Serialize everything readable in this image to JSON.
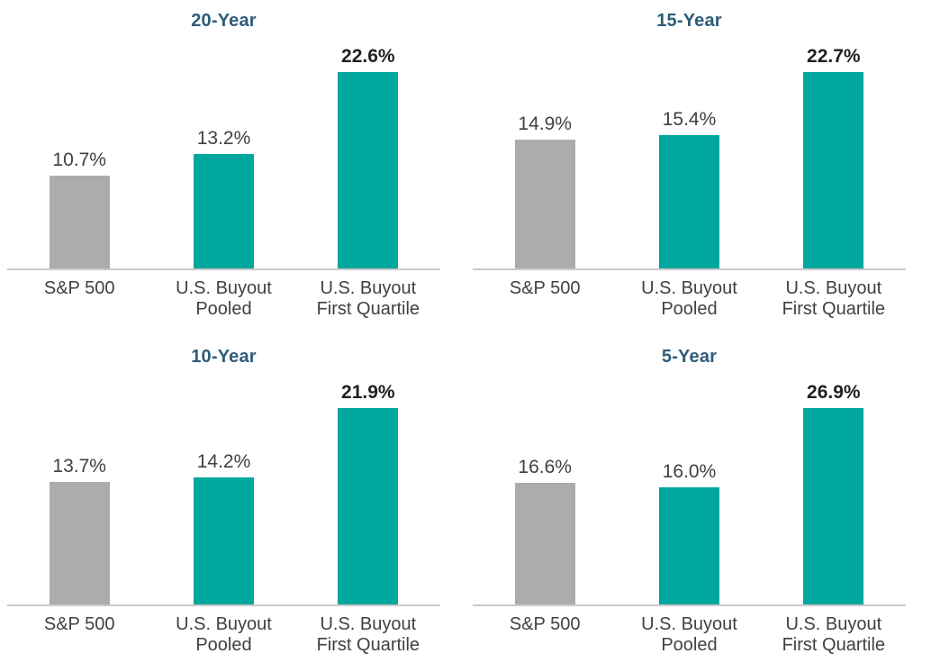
{
  "colors": {
    "teal": "#00A79D",
    "gray-bar": "#ABACAD",
    "axis": "#C9CACB",
    "title": "#2E5C7A",
    "text": "#414042",
    "text-bold": "#231F20",
    "bg": "#FFFFFF"
  },
  "chart_data": [
    {
      "type": "bar",
      "title": "20-Year",
      "categories": [
        "S&P 500",
        "U.S. Buyout\nPooled",
        "U.S. Buyout\nFirst Quartile"
      ],
      "values": [
        10.7,
        13.2,
        22.6
      ],
      "display_values": [
        "10.7%",
        "13.2%",
        "22.6%"
      ],
      "bar_colors": [
        "#ABACAD",
        "#00A79D",
        "#00A79D"
      ],
      "emphasized_bar_index": 2,
      "xlabel": "",
      "ylabel": "",
      "grid": "off",
      "legend": "none",
      "value_labels": "above bars"
    },
    {
      "type": "bar",
      "title": "15-Year",
      "categories": [
        "S&P 500",
        "U.S. Buyout\nPooled",
        "U.S. Buyout\nFirst Quartile"
      ],
      "values": [
        14.9,
        15.4,
        22.7
      ],
      "display_values": [
        "14.9%",
        "15.4%",
        "22.7%"
      ],
      "bar_colors": [
        "#ABACAD",
        "#00A79D",
        "#00A79D"
      ],
      "emphasized_bar_index": 2,
      "xlabel": "",
      "ylabel": "",
      "grid": "off",
      "legend": "none",
      "value_labels": "above bars"
    },
    {
      "type": "bar",
      "title": "10-Year",
      "categories": [
        "S&P 500",
        "U.S. Buyout\nPooled",
        "U.S. Buyout\nFirst Quartile"
      ],
      "values": [
        13.7,
        14.2,
        21.9
      ],
      "display_values": [
        "13.7%",
        "14.2%",
        "21.9%"
      ],
      "bar_colors": [
        "#ABACAD",
        "#00A79D",
        "#00A79D"
      ],
      "emphasized_bar_index": 2,
      "xlabel": "",
      "ylabel": "",
      "grid": "off",
      "legend": "none",
      "value_labels": "above bars"
    },
    {
      "type": "bar",
      "title": "5-Year",
      "categories": [
        "S&P 500",
        "U.S. Buyout\nPooled",
        "U.S. Buyout\nFirst Quartile"
      ],
      "values": [
        16.6,
        16.0,
        26.9
      ],
      "display_values": [
        "16.6%",
        "16.0%",
        "26.9%"
      ],
      "bar_colors": [
        "#ABACAD",
        "#00A79D",
        "#00A79D"
      ],
      "emphasized_bar_index": 2,
      "xlabel": "",
      "ylabel": "",
      "grid": "off",
      "legend": "none",
      "value_labels": "above bars"
    }
  ]
}
